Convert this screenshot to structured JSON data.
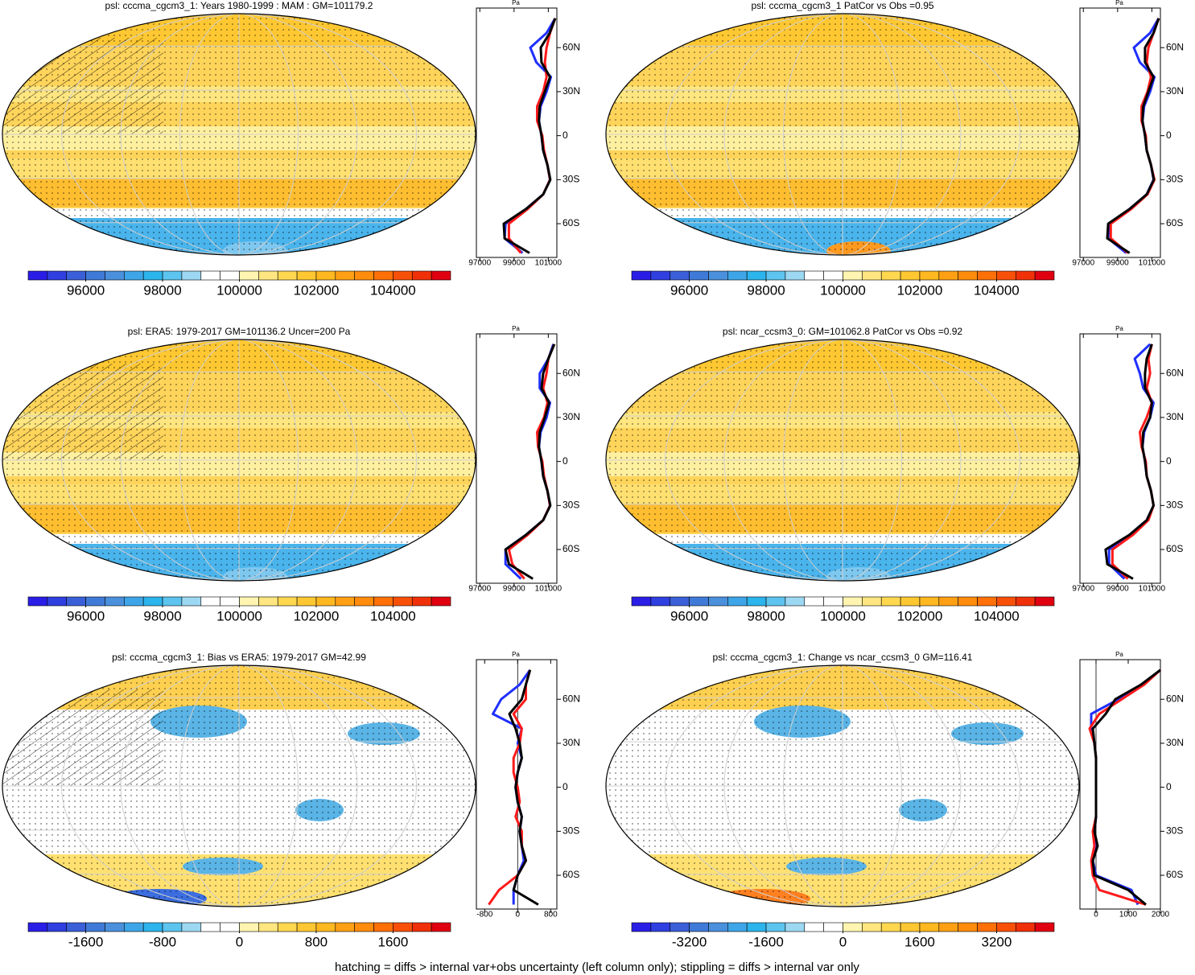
{
  "palette": [
    "#2a1ee6",
    "#2f3fe0",
    "#3a5fd8",
    "#3f7ad8",
    "#4a90dc",
    "#3ea6e8",
    "#2cb4ec",
    "#5cc4ee",
    "#9cd8f2",
    "#ffffff",
    "#ffffff",
    "#fff4b0",
    "#ffe680",
    "#ffd850",
    "#ffc832",
    "#ffb820",
    "#ffa014",
    "#ff8c0c",
    "#ff7008",
    "#f85008",
    "#f03008",
    "#e00010"
  ],
  "lats": [
    -80,
    -70,
    -60,
    -50,
    -40,
    -30,
    -20,
    -10,
    0,
    10,
    20,
    30,
    40,
    50,
    60,
    70,
    80
  ],
  "zonal_yticks": [
    {
      "value": 60,
      "label": "60N"
    },
    {
      "value": 30,
      "label": "30N"
    },
    0,
    {
      "value": -30,
      "label": "30S"
    },
    {
      "value": -60,
      "label": "60S"
    }
  ],
  "zonal_ylim": [
    -83,
    87
  ],
  "zonal_unit": "Pa",
  "panels": [
    {
      "title": "psl: cccma_cgcm3_1: Years 1980-1999 : MAM : GM=101179.2",
      "colorbar": {
        "lim": [
          94500,
          105500
        ],
        "ticks": [
          96000,
          98000,
          100000,
          102000,
          104000
        ]
      },
      "zonal": {
        "xlim": [
          96800,
          101500
        ],
        "xticks": [
          97000,
          99000,
          101000
        ],
        "series": [
          {
            "color": "#1f2fff",
            "values": [
              99500,
              98450,
              98500,
              99700,
              100700,
              101100,
              100950,
              100700,
              100600,
              100450,
              100550,
              100900,
              101150,
              100300,
              99950,
              100900,
              101400
            ]
          },
          {
            "color": "#ff1a1a",
            "values": [
              99400,
              98700,
              98700,
              99800,
              100700,
              101100,
              100950,
              100750,
              100650,
              100350,
              100350,
              100700,
              100900,
              100800,
              100900,
              101100,
              101400
            ]
          },
          {
            "color": "#000000",
            "values": [
              99900,
              98450,
              98400,
              99700,
              100700,
              101120,
              100950,
              100700,
              100600,
              100450,
              100500,
              100800,
              101100,
              100600,
              100560,
              101080,
              101400
            ]
          }
        ]
      }
    },
    {
      "title": "psl: cccma_cgcm3_1 PatCor vs Obs =0.95",
      "colorbar": {
        "lim": [
          94500,
          105500
        ],
        "ticks": [
          96000,
          98000,
          100000,
          102000,
          104000
        ]
      },
      "zonal": {
        "xlim": [
          96800,
          101500
        ],
        "xticks": [
          97000,
          99000,
          101000
        ],
        "series": [
          {
            "color": "#1f2fff",
            "values": [
              99500,
              98450,
              98500,
              99700,
              100700,
              101100,
              100950,
              100700,
              100600,
              100450,
              100550,
              100900,
              101150,
              100300,
              99950,
              100900,
              101400
            ]
          },
          {
            "color": "#ff1a1a",
            "values": [
              99600,
              98600,
              98600,
              99800,
              100750,
              101150,
              100950,
              100700,
              100650,
              100400,
              100400,
              100750,
              100950,
              100700,
              100800,
              101100,
              101400
            ]
          },
          {
            "color": "#000000",
            "values": [
              99700,
              98400,
              98450,
              99700,
              100700,
              101120,
              100950,
              100700,
              100600,
              100450,
              100500,
              100800,
              101100,
              100600,
              100600,
              101100,
              101400
            ]
          }
        ]
      }
    },
    {
      "title": "psl: ERA5: 1979-2017 GM=101136.2 Uncer=200 Pa",
      "colorbar": {
        "lim": [
          94500,
          105500
        ],
        "ticks": [
          96000,
          98000,
          100000,
          102000,
          104000
        ]
      },
      "zonal": {
        "xlim": [
          96800,
          101500
        ],
        "xticks": [
          97000,
          99000,
          101000
        ],
        "series": [
          {
            "color": "#1f2fff",
            "values": [
              99400,
              98500,
              98500,
              99700,
              100700,
              101100,
              100950,
              100700,
              100600,
              100450,
              100550,
              100900,
              101100,
              100500,
              100500,
              101000,
              101300
            ]
          },
          {
            "color": "#ff1a1a",
            "values": [
              99600,
              98900,
              98700,
              99800,
              100700,
              101100,
              100950,
              100750,
              100650,
              100400,
              100350,
              100750,
              100950,
              100700,
              100900,
              101000,
              101350
            ]
          },
          {
            "color": "#000000",
            "values": [
              100100,
              98700,
              98500,
              99700,
              100700,
              101120,
              100950,
              100700,
              100600,
              100450,
              100500,
              100800,
              101050,
              100600,
              100700,
              101000,
              101350
            ]
          }
        ]
      }
    },
    {
      "title": "psl: ncar_ccsm3_0: GM=101062.8 PatCor vs Obs =0.92",
      "colorbar": {
        "lim": [
          94500,
          105500
        ],
        "ticks": [
          96000,
          98000,
          100000,
          102000,
          104000
        ]
      },
      "zonal": {
        "xlim": [
          96800,
          101500
        ],
        "xticks": [
          97000,
          99000,
          101000
        ],
        "series": [
          {
            "color": "#1f2fff",
            "values": [
              99400,
              98500,
              98500,
              99700,
              100700,
              101100,
              100950,
              100700,
              100600,
              100450,
              100550,
              100900,
              101100,
              100500,
              100300,
              100000,
              100900
            ]
          },
          {
            "color": "#ff1a1a",
            "values": [
              99600,
              98700,
              98700,
              99900,
              100800,
              101100,
              100950,
              100700,
              100650,
              100400,
              100300,
              100700,
              101000,
              100700,
              100900,
              100800,
              101000
            ]
          },
          {
            "color": "#000000",
            "values": [
              99900,
              98400,
              98300,
              99700,
              100700,
              101100,
              100950,
              100700,
              100600,
              100450,
              100500,
              100900,
              101000,
              100600,
              100600,
              100700,
              101000
            ]
          }
        ]
      }
    },
    {
      "title": "psl: cccma_cgcm3_1: Bias vs ERA5: 1979-2017 GM=42.99",
      "colorbar": {
        "lim": [
          -2200,
          2200
        ],
        "ticks": [
          -1600,
          -800,
          0,
          800,
          1600
        ]
      },
      "zonal": {
        "xlim": [
          -1000,
          950
        ],
        "xticks": [
          -800,
          0,
          800
        ],
        "series": [
          {
            "color": "#1f2fff",
            "values": [
              -100,
              -100,
              0,
              150,
              100,
              50,
              100,
              0,
              -50,
              0,
              100,
              0,
              100,
              -600,
              -400,
              50,
              300
            ]
          },
          {
            "color": "#ff1a1a",
            "values": [
              -700,
              -450,
              0,
              200,
              100,
              100,
              -50,
              50,
              0,
              -100,
              -100,
              50,
              100,
              -100,
              200,
              200,
              300
            ]
          },
          {
            "color": "#000000",
            "values": [
              500,
              -100,
              0,
              200,
              100,
              50,
              100,
              0,
              -50,
              0,
              100,
              50,
              -50,
              -200,
              100,
              200,
              300
            ]
          }
        ]
      }
    },
    {
      "title": "psl: cccma_cgcm3_1: Change vs ncar_ccsm3_0 GM=116.41",
      "colorbar": {
        "lim": [
          -4400,
          4400
        ],
        "ticks": [
          -3200,
          -1600,
          0,
          1600,
          3200
        ]
      },
      "zonal": {
        "xlim": [
          -500,
          2000
        ],
        "xticks": [
          0,
          1000,
          2000
        ],
        "series": [
          {
            "color": "#1f2fff",
            "values": [
              1300,
              1100,
              0,
              -100,
              0,
              -50,
              0,
              0,
              0,
              0,
              0,
              -50,
              -150,
              -150,
              700,
              1450,
              2000
            ]
          },
          {
            "color": "#ff1a1a",
            "values": [
              1550,
              100,
              -100,
              -150,
              -50,
              -100,
              0,
              0,
              0,
              0,
              0,
              -50,
              -200,
              100,
              800,
              1500,
              2000
            ]
          },
          {
            "color": "#000000",
            "values": [
              1550,
              1000,
              -50,
              -100,
              50,
              -50,
              0,
              0,
              0,
              0,
              0,
              -50,
              -100,
              300,
              600,
              1400,
              2000
            ]
          }
        ]
      }
    }
  ],
  "footer": "hatching = diffs > internal var+obs uncertainty (left column only); stippling = diffs > internal var only"
}
